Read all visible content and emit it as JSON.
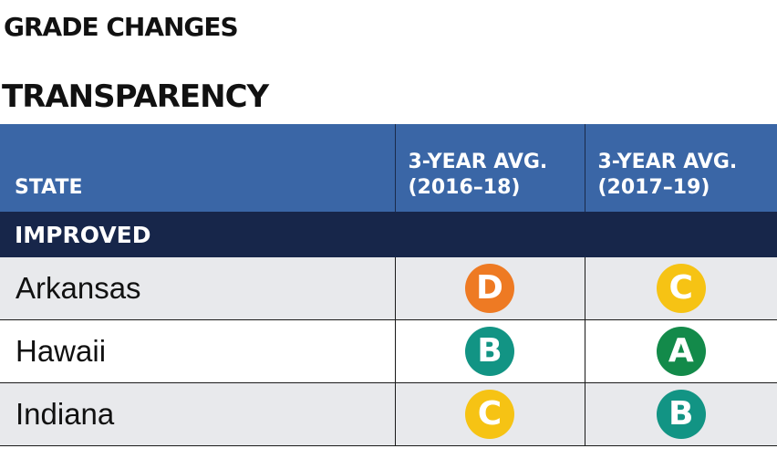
{
  "kicker": "GRADE CHANGES",
  "title": "TRANSPARENCY",
  "table": {
    "headers": {
      "state": "STATE",
      "avg_2016_18_line1": "3-YEAR AVG.",
      "avg_2016_18_line2": "(2016–18)",
      "avg_2017_19_line1": "3-YEAR AVG.",
      "avg_2017_19_line2": "(2017–19)"
    },
    "group_label": "IMPROVED",
    "rows": [
      {
        "state": "Arkansas",
        "grade_2016_18": "D",
        "grade_2017_19": "C"
      },
      {
        "state": "Hawaii",
        "grade_2016_18": "B",
        "grade_2017_19": "A"
      },
      {
        "state": "Indiana",
        "grade_2016_18": "C",
        "grade_2017_19": "B"
      }
    ]
  },
  "grade_colors": {
    "A": "#138a4a",
    "B": "#129484",
    "C": "#f6c314",
    "D": "#ee7a23"
  },
  "colors": {
    "header_bg": "#3a66a6",
    "group_bg": "#17264a",
    "row_shaded": "#e8e9ec"
  }
}
